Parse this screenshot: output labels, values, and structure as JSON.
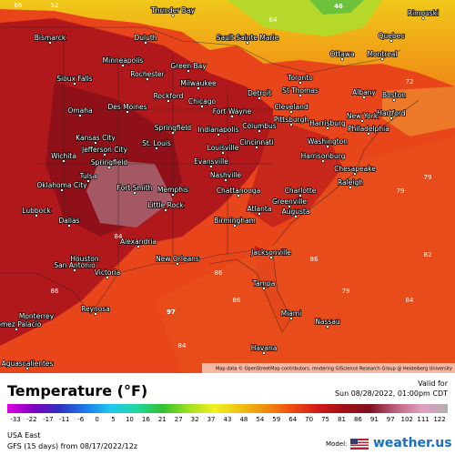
{
  "map": {
    "cities": [
      "Thunder Bay",
      "Bismarck",
      "Duluth",
      "Sault Sainte Marie",
      "Quebec",
      "Rimouski",
      "Minneapolis",
      "Green Bay",
      "Ottawa",
      "Montreal",
      "Sioux Falls",
      "Rochester",
      "Milwaukee",
      "Toronto",
      "Albany",
      "Boston",
      "Omaha",
      "Des Moines",
      "Rockford",
      "Chicago",
      "Detroit",
      "St Thomas",
      "Cleveland",
      "Hartford",
      "Fort Wayne",
      "Pittsburgh",
      "Harrisburg",
      "New York",
      "Kansas City",
      "Springfield",
      "Indianapolis",
      "Columbus",
      "Philadelphia",
      "Jefferson City",
      "St. Louis",
      "Cincinnati",
      "Washington",
      "Louisville",
      "Wichita",
      "Springfield",
      "Evansville",
      "Harrisonburg",
      "Tulsa",
      "Nashville",
      "Chesapeake",
      "Oklahoma City",
      "Fort Smith",
      "Memphis",
      "Raleigh",
      "Charlotte",
      "Chattanooga",
      "Greenville",
      "Lubbock",
      "Little Rock",
      "Atlanta",
      "Augusta",
      "Birmingham",
      "Dallas",
      "Alexandria",
      "Jacksonville",
      "Houston",
      "New Orleans",
      "San Antonio",
      "Victoria",
      "Tampa",
      "Reynosa",
      "Monterrey",
      "Miami",
      "Nassau",
      "Gomez Palacio",
      "Havana",
      "Aguascalientes"
    ],
    "temps": [
      "46",
      "97",
      "66",
      "52",
      "64",
      "72",
      "79",
      "79",
      "84",
      "86",
      "86",
      "82",
      "86",
      "84",
      "79",
      "86",
      "84"
    ],
    "attribution": "Map data © OpenStreetMap contributors, rendering GIScience Research Group @ Heidelberg University"
  },
  "legend": {
    "title": "Temperature (°F)",
    "valid_label": "Valid for",
    "valid_time": "Sun 08/28/2022, 01:00pm CDT",
    "ticks": [
      -33,
      -22,
      -17,
      -11,
      -6,
      0,
      5,
      10,
      16,
      21,
      27,
      32,
      37,
      43,
      48,
      54,
      59,
      64,
      70,
      75,
      81,
      86,
      91,
      97,
      102,
      111,
      122
    ]
  },
  "footer": {
    "region": "USA East",
    "model_run": "GFS (15 days) from 08/17/2022/12z",
    "model_label": "Model:",
    "brand": "weather.us"
  }
}
